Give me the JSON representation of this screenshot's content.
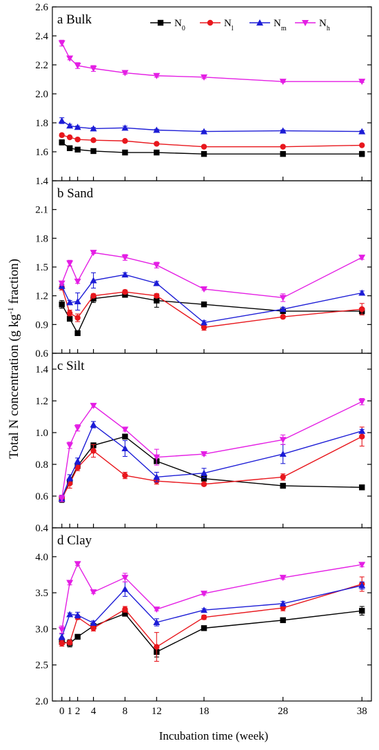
{
  "figure": {
    "ylabel_main": "Total N concentration (g kg",
    "ylabel_sup": "-1",
    "ylabel_tail": " fraction)",
    "xlabel": "Incubation time (week)",
    "legend": [
      {
        "base": "N",
        "sub": "0",
        "color": "#000000",
        "marker": "square"
      },
      {
        "base": "N",
        "sub": "l",
        "color": "#e8171d",
        "marker": "circle"
      },
      {
        "base": "N",
        "sub": "m",
        "color": "#1c1cd6",
        "marker": "triangle-up"
      },
      {
        "base": "N",
        "sub": "h",
        "color": "#e41ee4",
        "marker": "triangle-down"
      }
    ]
  },
  "chart_data": [
    {
      "type": "line",
      "title": "a  Bulk",
      "x": [
        0,
        1,
        2,
        4,
        8,
        12,
        18,
        28,
        38
      ],
      "x_ticks": [
        0,
        1,
        2,
        4,
        8,
        12,
        18,
        28,
        38
      ],
      "ylim": [
        1.4,
        2.6
      ],
      "y_ticks": [
        "1.4",
        "1.6",
        "1.8",
        "2.0",
        "2.2",
        "2.4",
        "2.6"
      ],
      "series": [
        {
          "name": "N0",
          "values": [
            1.665,
            1.625,
            1.615,
            1.605,
            1.595,
            1.595,
            1.585,
            1.585,
            1.585
          ],
          "errors": [
            0.018,
            0.008,
            0.008,
            0.006,
            0.006,
            0.006,
            0.006,
            0.006,
            0.018
          ]
        },
        {
          "name": "Nl",
          "values": [
            1.715,
            1.7,
            1.685,
            1.68,
            1.675,
            1.655,
            1.635,
            1.635,
            1.645
          ],
          "errors": [
            0.01,
            0.008,
            0.008,
            0.006,
            0.006,
            0.006,
            0.006,
            0.006,
            0.006
          ]
        },
        {
          "name": "Nm",
          "values": [
            1.815,
            1.78,
            1.77,
            1.76,
            1.765,
            1.75,
            1.74,
            1.745,
            1.74
          ],
          "errors": [
            0.02,
            0.01,
            0.008,
            0.008,
            0.012,
            0.006,
            0.006,
            0.006,
            0.006
          ]
        },
        {
          "name": "Nh",
          "values": [
            2.35,
            2.245,
            2.195,
            2.175,
            2.145,
            2.125,
            2.115,
            2.085,
            2.085
          ],
          "errors": [
            0.02,
            0.01,
            0.02,
            0.02,
            0.01,
            0.01,
            0.01,
            0.006,
            0.006
          ]
        }
      ]
    },
    {
      "type": "line",
      "title": "b Sand",
      "x": [
        0,
        1,
        2,
        4,
        8,
        12,
        18,
        28,
        38
      ],
      "x_ticks": [
        0,
        1,
        2,
        4,
        8,
        12,
        18,
        28,
        38
      ],
      "ylim": [
        0.6,
        2.4
      ],
      "y_ticks": [
        "0.6",
        "0.9",
        "1.2",
        "1.5",
        "1.8",
        "2.1"
      ],
      "series": [
        {
          "name": "N0",
          "values": [
            1.11,
            0.96,
            0.81,
            1.17,
            1.21,
            1.15,
            1.11,
            1.04,
            1.04
          ],
          "errors": [
            0.04,
            0.02,
            0.02,
            0.04,
            0.02,
            0.07,
            0.01,
            0.01,
            0.03
          ]
        },
        {
          "name": "Nl",
          "values": [
            1.29,
            1.02,
            0.97,
            1.2,
            1.24,
            1.2,
            0.87,
            0.98,
            1.06
          ],
          "errors": [
            0.03,
            0.03,
            0.04,
            0.02,
            0.02,
            0.02,
            0.03,
            0.01,
            0.06
          ]
        },
        {
          "name": "Nm",
          "values": [
            1.3,
            1.13,
            1.14,
            1.36,
            1.42,
            1.33,
            0.92,
            1.06,
            1.23
          ],
          "errors": [
            0.02,
            0.02,
            0.09,
            0.08,
            0.02,
            0.02,
            0.02,
            0.02,
            0.02
          ]
        },
        {
          "name": "Nh",
          "values": [
            1.33,
            1.54,
            1.35,
            1.65,
            1.6,
            1.52,
            1.27,
            1.18,
            1.6
          ],
          "errors": [
            0.02,
            0.03,
            0.02,
            0.01,
            0.03,
            0.03,
            0.01,
            0.04,
            0.02
          ]
        }
      ]
    },
    {
      "type": "line",
      "title": "c  Silt",
      "x": [
        0,
        1,
        2,
        4,
        8,
        12,
        18,
        28,
        38
      ],
      "x_ticks": [
        0,
        1,
        2,
        4,
        8,
        12,
        18,
        28,
        38
      ],
      "ylim": [
        0.4,
        1.5
      ],
      "y_ticks": [
        "0.4",
        "0.6",
        "0.8",
        "1.0",
        "1.2",
        "1.4"
      ],
      "series": [
        {
          "name": "N0",
          "values": [
            0.58,
            0.69,
            0.79,
            0.92,
            0.975,
            0.82,
            0.71,
            0.665,
            0.655
          ],
          "errors": [
            0.02,
            0.01,
            0.01,
            0.01,
            0.01,
            0.01,
            0.01,
            0.005,
            0.005
          ]
        },
        {
          "name": "Nl",
          "values": [
            0.585,
            0.68,
            0.78,
            0.885,
            0.73,
            0.695,
            0.675,
            0.72,
            0.975
          ],
          "errors": [
            0.02,
            0.03,
            0.02,
            0.04,
            0.02,
            0.02,
            0.01,
            0.02,
            0.06
          ]
        },
        {
          "name": "Nm",
          "values": [
            0.585,
            0.715,
            0.82,
            1.05,
            0.9,
            0.72,
            0.745,
            0.865,
            1.01
          ],
          "errors": [
            0.02,
            0.02,
            0.02,
            0.02,
            0.05,
            0.03,
            0.03,
            0.06,
            0.01
          ]
        },
        {
          "name": "Nh",
          "values": [
            0.585,
            0.92,
            1.03,
            1.17,
            1.02,
            0.845,
            0.865,
            0.955,
            1.195
          ],
          "errors": [
            0.02,
            0.02,
            0.02,
            0.01,
            0.01,
            0.05,
            0.01,
            0.03,
            0.02
          ]
        }
      ]
    },
    {
      "type": "line",
      "title": "d Clay",
      "x": [
        0,
        1,
        2,
        4,
        8,
        12,
        18,
        28,
        38
      ],
      "x_ticks": [
        0,
        1,
        2,
        4,
        8,
        12,
        18,
        28,
        38
      ],
      "x_tick_labels": [
        "0",
        "1",
        "2",
        "4",
        "8",
        "12",
        "18",
        "28",
        "38"
      ],
      "ylim": [
        2.0,
        4.4
      ],
      "y_ticks": [
        "2.0",
        "2.5",
        "3.0",
        "3.5",
        "4.0"
      ],
      "series": [
        {
          "name": "N0",
          "values": [
            2.82,
            2.8,
            2.89,
            3.04,
            3.21,
            2.68,
            3.01,
            3.12,
            3.25
          ],
          "errors": [
            0.04,
            0.05,
            0.02,
            0.02,
            0.03,
            0.07,
            0.02,
            0.02,
            0.06
          ]
        },
        {
          "name": "Nl",
          "values": [
            2.8,
            2.81,
            3.16,
            3.01,
            3.27,
            2.75,
            3.16,
            3.29,
            3.62
          ],
          "errors": [
            0.04,
            0.03,
            0.03,
            0.04,
            0.04,
            0.2,
            0.03,
            0.04,
            0.1
          ]
        },
        {
          "name": "Nm",
          "values": [
            2.89,
            3.2,
            3.19,
            3.08,
            3.55,
            3.09,
            3.26,
            3.35,
            3.6
          ],
          "errors": [
            0.04,
            0.02,
            0.04,
            0.03,
            0.1,
            0.05,
            0.02,
            0.03,
            0.05
          ]
        },
        {
          "name": "Nh",
          "values": [
            2.99,
            3.64,
            3.9,
            3.51,
            3.71,
            3.27,
            3.49,
            3.71,
            3.89
          ],
          "errors": [
            0.05,
            0.03,
            0.02,
            0.02,
            0.06,
            0.02,
            0.02,
            0.02,
            0.03
          ]
        }
      ]
    }
  ]
}
